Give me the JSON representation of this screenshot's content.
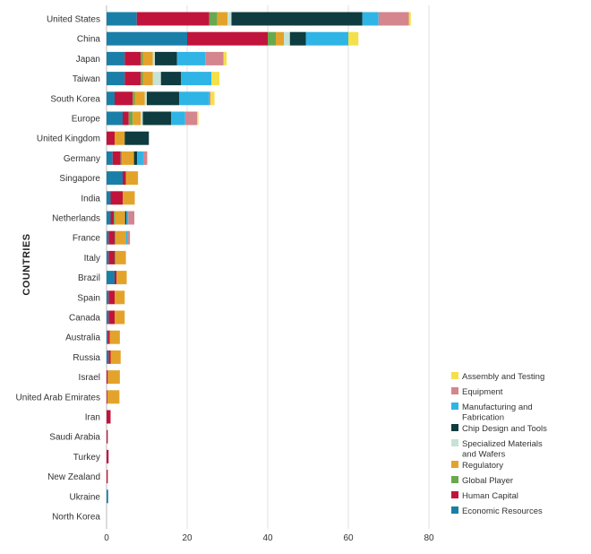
{
  "chart_data": {
    "type": "bar",
    "orientation": "horizontal",
    "stacked": true,
    "ylabel": "COUNTRIES",
    "xlabel": "",
    "xlim": [
      0,
      80
    ],
    "xticks": [
      0,
      20,
      40,
      60,
      80
    ],
    "grid": true,
    "legend_position": "bottom-right",
    "categories": [
      "United States",
      "China",
      "Japan",
      "Taiwan",
      "South Korea",
      "Europe",
      "United Kingdom",
      "Germany",
      "Singapore",
      "India",
      "Netherlands",
      "France",
      "Italy",
      "Brazil",
      "Spain",
      "Canada",
      "Australia",
      "Russia",
      "Israel",
      "United Arab Emirates",
      "Iran",
      "Saudi Arabia",
      "Turkey",
      "New Zealand",
      "Ukraine",
      "North Korea"
    ],
    "series": [
      {
        "name": "Economic Resources",
        "color": "#1a7fa8",
        "values": [
          7.5,
          20,
          4.5,
          4.5,
          2,
          4,
          0,
          1.5,
          4,
          1,
          1,
          0.5,
          0.5,
          2,
          0.5,
          0.5,
          0.3,
          0.5,
          0,
          0,
          0,
          0,
          0,
          0,
          0.4,
          0
        ]
      },
      {
        "name": "Human Capital",
        "color": "#c0143c",
        "values": [
          18,
          20,
          4,
          4,
          4.5,
          1.5,
          2,
          2,
          0.8,
          3,
          0.8,
          1.5,
          1.5,
          0.5,
          1.5,
          1.5,
          0.5,
          0.5,
          0.3,
          0.2,
          1,
          0.3,
          0.5,
          0.3,
          0,
          0
        ]
      },
      {
        "name": "Global Player",
        "color": "#6aa84f",
        "values": [
          2,
          2,
          0.5,
          0.5,
          0.5,
          1,
          0,
          0.3,
          0,
          0,
          0.3,
          0.3,
          0.3,
          0,
          0,
          0,
          0,
          0,
          0,
          0,
          0,
          0,
          0,
          0,
          0,
          0
        ]
      },
      {
        "name": "Regulatory",
        "color": "#e3a32b",
        "values": [
          2.5,
          2,
          2.5,
          2.5,
          2.5,
          2,
          2.5,
          3,
          3,
          3,
          2.5,
          2.5,
          2.5,
          2.5,
          2.5,
          2.5,
          2.5,
          2.5,
          3,
          3,
          0,
          0,
          0,
          0,
          0,
          0
        ]
      },
      {
        "name": "Specialized Materials and Wafers",
        "color": "#c6e3d6",
        "values": [
          1,
          1.5,
          0.5,
          2,
          0.5,
          0.5,
          0,
          0,
          0,
          0,
          0,
          0,
          0,
          0,
          0,
          0,
          0,
          0,
          0,
          0,
          0,
          0,
          0,
          0,
          0,
          0
        ]
      },
      {
        "name": "Chip Design and Tools",
        "color": "#0e3c40",
        "values": [
          32.5,
          4,
          5.5,
          5,
          8,
          7,
          6,
          0.8,
          0,
          0,
          0.3,
          0,
          0,
          0,
          0,
          0,
          0,
          0,
          0,
          0,
          0,
          0,
          0,
          0,
          0,
          0
        ]
      },
      {
        "name": "Manufacturing and Fabrication",
        "color": "#2fb4e6",
        "values": [
          4,
          10.5,
          7,
          7.5,
          7.5,
          3.5,
          0,
          1.5,
          0,
          0,
          0.5,
          0.5,
          0,
          0,
          0,
          0,
          0,
          0,
          0,
          0,
          0,
          0,
          0,
          0,
          0,
          0
        ]
      },
      {
        "name": "Equipment",
        "color": "#d4858d",
        "values": [
          7.5,
          0,
          4.5,
          0,
          0.3,
          3,
          0,
          1,
          0,
          0,
          1.5,
          0.5,
          0,
          0,
          0,
          0,
          0,
          0,
          0,
          0,
          0,
          0,
          0,
          0,
          0,
          0
        ]
      },
      {
        "name": "Assembly and Testing",
        "color": "#f5e04a",
        "values": [
          0.5,
          2.5,
          0.8,
          2,
          1,
          0.3,
          0,
          0,
          0,
          0,
          0,
          0,
          0,
          0,
          0,
          0,
          0,
          0,
          0,
          0,
          0,
          0,
          0,
          0,
          0,
          0
        ]
      }
    ],
    "legend_order": [
      "Assembly and Testing",
      "Equipment",
      "Manufacturing and Fabrication",
      "Chip Design and Tools",
      "Specialized Materials and Wafers",
      "Regulatory",
      "Global Player",
      "Human Capital",
      "Economic Resources"
    ]
  }
}
